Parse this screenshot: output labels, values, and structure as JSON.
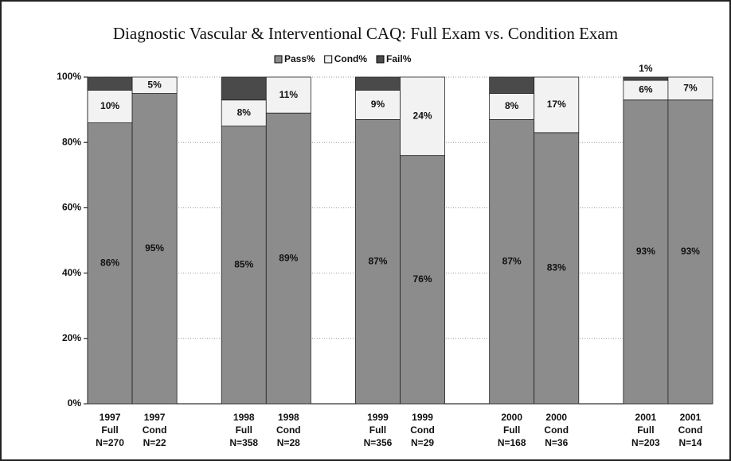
{
  "chart_data": {
    "type": "stacked_bar",
    "title": "Diagnostic Vascular & Interventional CAQ: Full Exam vs. Condition Exam",
    "categories": [
      [
        "1997",
        "Full",
        "N=270"
      ],
      [
        "1997",
        "Cond",
        "N=22"
      ],
      null,
      [
        "1998",
        "Full",
        "N=358"
      ],
      [
        "1998",
        "Cond",
        "N=28"
      ],
      null,
      [
        "1999",
        "Full",
        "N=356"
      ],
      [
        "1999",
        "Cond",
        "N=29"
      ],
      null,
      [
        "2000",
        "Full",
        "N=168"
      ],
      [
        "2000",
        "Cond",
        "N=36"
      ],
      null,
      [
        "2001",
        "Full",
        "N=203"
      ],
      [
        "2001",
        "Cond",
        "N=14"
      ]
    ],
    "series": [
      {
        "name": "Pass%",
        "color": "#8c8c8c",
        "values": [
          86,
          95,
          null,
          85,
          89,
          null,
          87,
          76,
          null,
          87,
          83,
          null,
          93,
          93
        ],
        "value_labels": [
          "86%",
          "95%",
          null,
          "85%",
          "89%",
          null,
          "87%",
          "76%",
          null,
          "87%",
          "83%",
          null,
          "93%",
          "93%"
        ]
      },
      {
        "name": "Cond%",
        "color": "#f2f2f2",
        "values": [
          10,
          5,
          null,
          8,
          11,
          null,
          9,
          24,
          null,
          8,
          17,
          null,
          6,
          7
        ],
        "value_labels": [
          "10%",
          "5%",
          null,
          "8%",
          "11%",
          null,
          "9%",
          "24%",
          null,
          "8%",
          "17%",
          null,
          "6%",
          "7%"
        ]
      },
      {
        "name": "Fail%",
        "color": "#4a4a4a",
        "values": [
          4,
          0,
          null,
          7,
          0,
          null,
          4,
          0,
          null,
          5,
          0,
          null,
          1,
          0
        ],
        "value_labels": [
          null,
          null,
          null,
          null,
          null,
          null,
          null,
          null,
          null,
          null,
          null,
          null,
          "1%",
          null
        ]
      }
    ],
    "ylim": [
      0,
      100
    ],
    "yticks": [
      {
        "value": 0,
        "label": "0%"
      },
      {
        "value": 20,
        "label": "20%"
      },
      {
        "value": 40,
        "label": "40%"
      },
      {
        "value": 60,
        "label": "60%"
      },
      {
        "value": 80,
        "label": "80%"
      },
      {
        "value": 100,
        "label": "100%"
      }
    ],
    "grid": true,
    "legend": "top"
  }
}
